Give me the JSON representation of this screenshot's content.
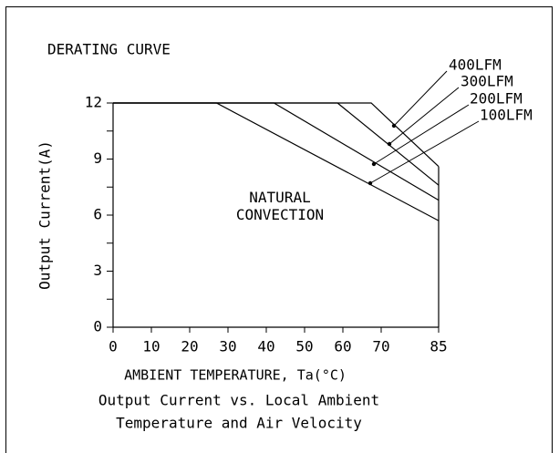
{
  "chart_data": {
    "type": "line",
    "title": "DERATING CURVE",
    "xlabel": "AMBIENT TEMPERATURE, Ta(°C)",
    "ylabel": "Output Current(A)",
    "annotation": "NATURAL CONVECTION",
    "caption": [
      "Output Current vs. Local Ambient",
      "Temperature and Air Velocity"
    ],
    "xlim": [
      0,
      85
    ],
    "ylim": [
      0,
      12
    ],
    "xticks": [
      0,
      10,
      20,
      30,
      40,
      50,
      60,
      70,
      85
    ],
    "yticks": [
      0,
      3,
      6,
      9,
      12
    ],
    "yminorticks": [
      1.5,
      4.5,
      7.5,
      10.5
    ],
    "series": [
      {
        "name": "100LFM",
        "color": "#000000",
        "x": [
          0,
          27,
          85
        ],
        "values": [
          12,
          12,
          5.7
        ]
      },
      {
        "name": "200LFM",
        "color": "#000000",
        "x": [
          0,
          42,
          85
        ],
        "values": [
          12,
          12,
          6.8
        ]
      },
      {
        "name": "300LFM",
        "color": "#000000",
        "x": [
          0,
          58.6,
          85
        ],
        "values": [
          12,
          12,
          7.6
        ]
      },
      {
        "name": "400LFM",
        "color": "#000000",
        "x": [
          0,
          67.4,
          85
        ],
        "values": [
          12,
          12,
          8.6
        ]
      }
    ]
  }
}
